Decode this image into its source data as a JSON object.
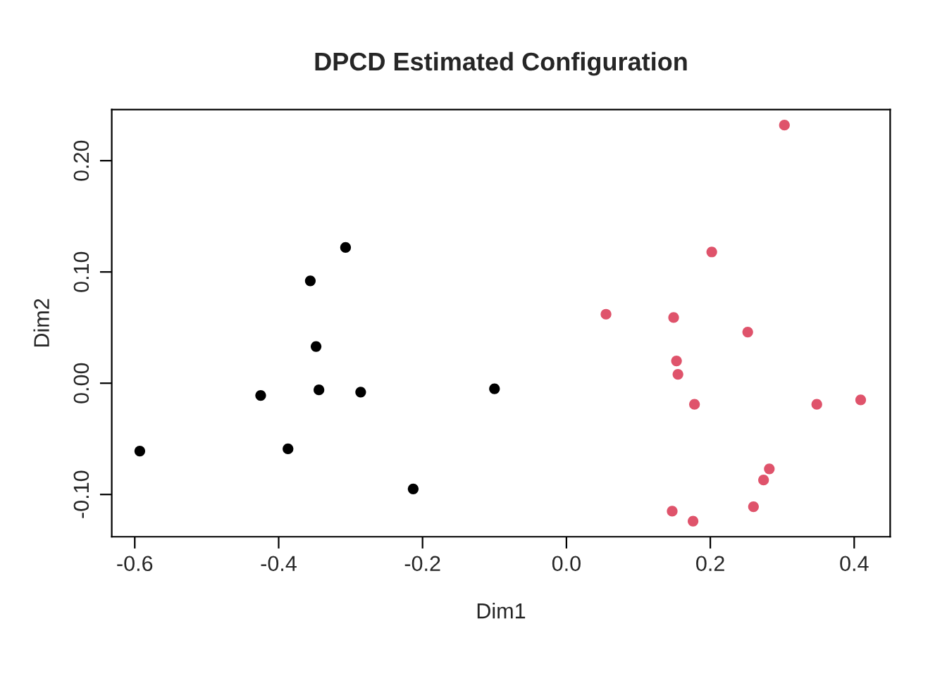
{
  "chart_data": {
    "type": "scatter",
    "title": "DPCD Estimated Configuration",
    "xlabel": "Dim1",
    "ylabel": "Dim2",
    "xlim": [
      -0.632,
      0.45
    ],
    "ylim": [
      -0.138,
      0.246
    ],
    "xticks": [
      {
        "value": -0.6,
        "label": "-0.6"
      },
      {
        "value": -0.4,
        "label": "-0.4"
      },
      {
        "value": -0.2,
        "label": "-0.2"
      },
      {
        "value": 0.0,
        "label": "0.0"
      },
      {
        "value": 0.2,
        "label": "0.2"
      },
      {
        "value": 0.4,
        "label": "0.4"
      }
    ],
    "yticks": [
      {
        "value": -0.1,
        "label": "-0.10"
      },
      {
        "value": 0.0,
        "label": "0.00"
      },
      {
        "value": 0.1,
        "label": "0.10"
      },
      {
        "value": 0.2,
        "label": "0.20"
      }
    ],
    "grid": false,
    "legend": false,
    "marker": "circle",
    "series": [
      {
        "color": "#000000",
        "x": [
          -0.593,
          -0.425,
          -0.387,
          -0.356,
          -0.348,
          -0.344,
          -0.307,
          -0.286,
          -0.213,
          -0.1
        ],
        "values": [
          -0.061,
          -0.011,
          -0.059,
          0.092,
          0.033,
          -0.006,
          0.122,
          -0.008,
          -0.095,
          -0.005
        ]
      },
      {
        "color": "#df536b",
        "x": [
          0.055,
          0.149,
          0.153,
          0.155,
          0.178,
          0.202,
          0.252,
          0.303,
          0.348,
          0.409,
          0.282,
          0.274,
          0.26,
          0.147,
          0.176
        ],
        "values": [
          0.062,
          0.059,
          0.02,
          0.008,
          -0.019,
          0.118,
          0.046,
          0.232,
          -0.019,
          -0.015,
          -0.077,
          -0.087,
          -0.111,
          -0.115,
          -0.124
        ]
      }
    ]
  }
}
